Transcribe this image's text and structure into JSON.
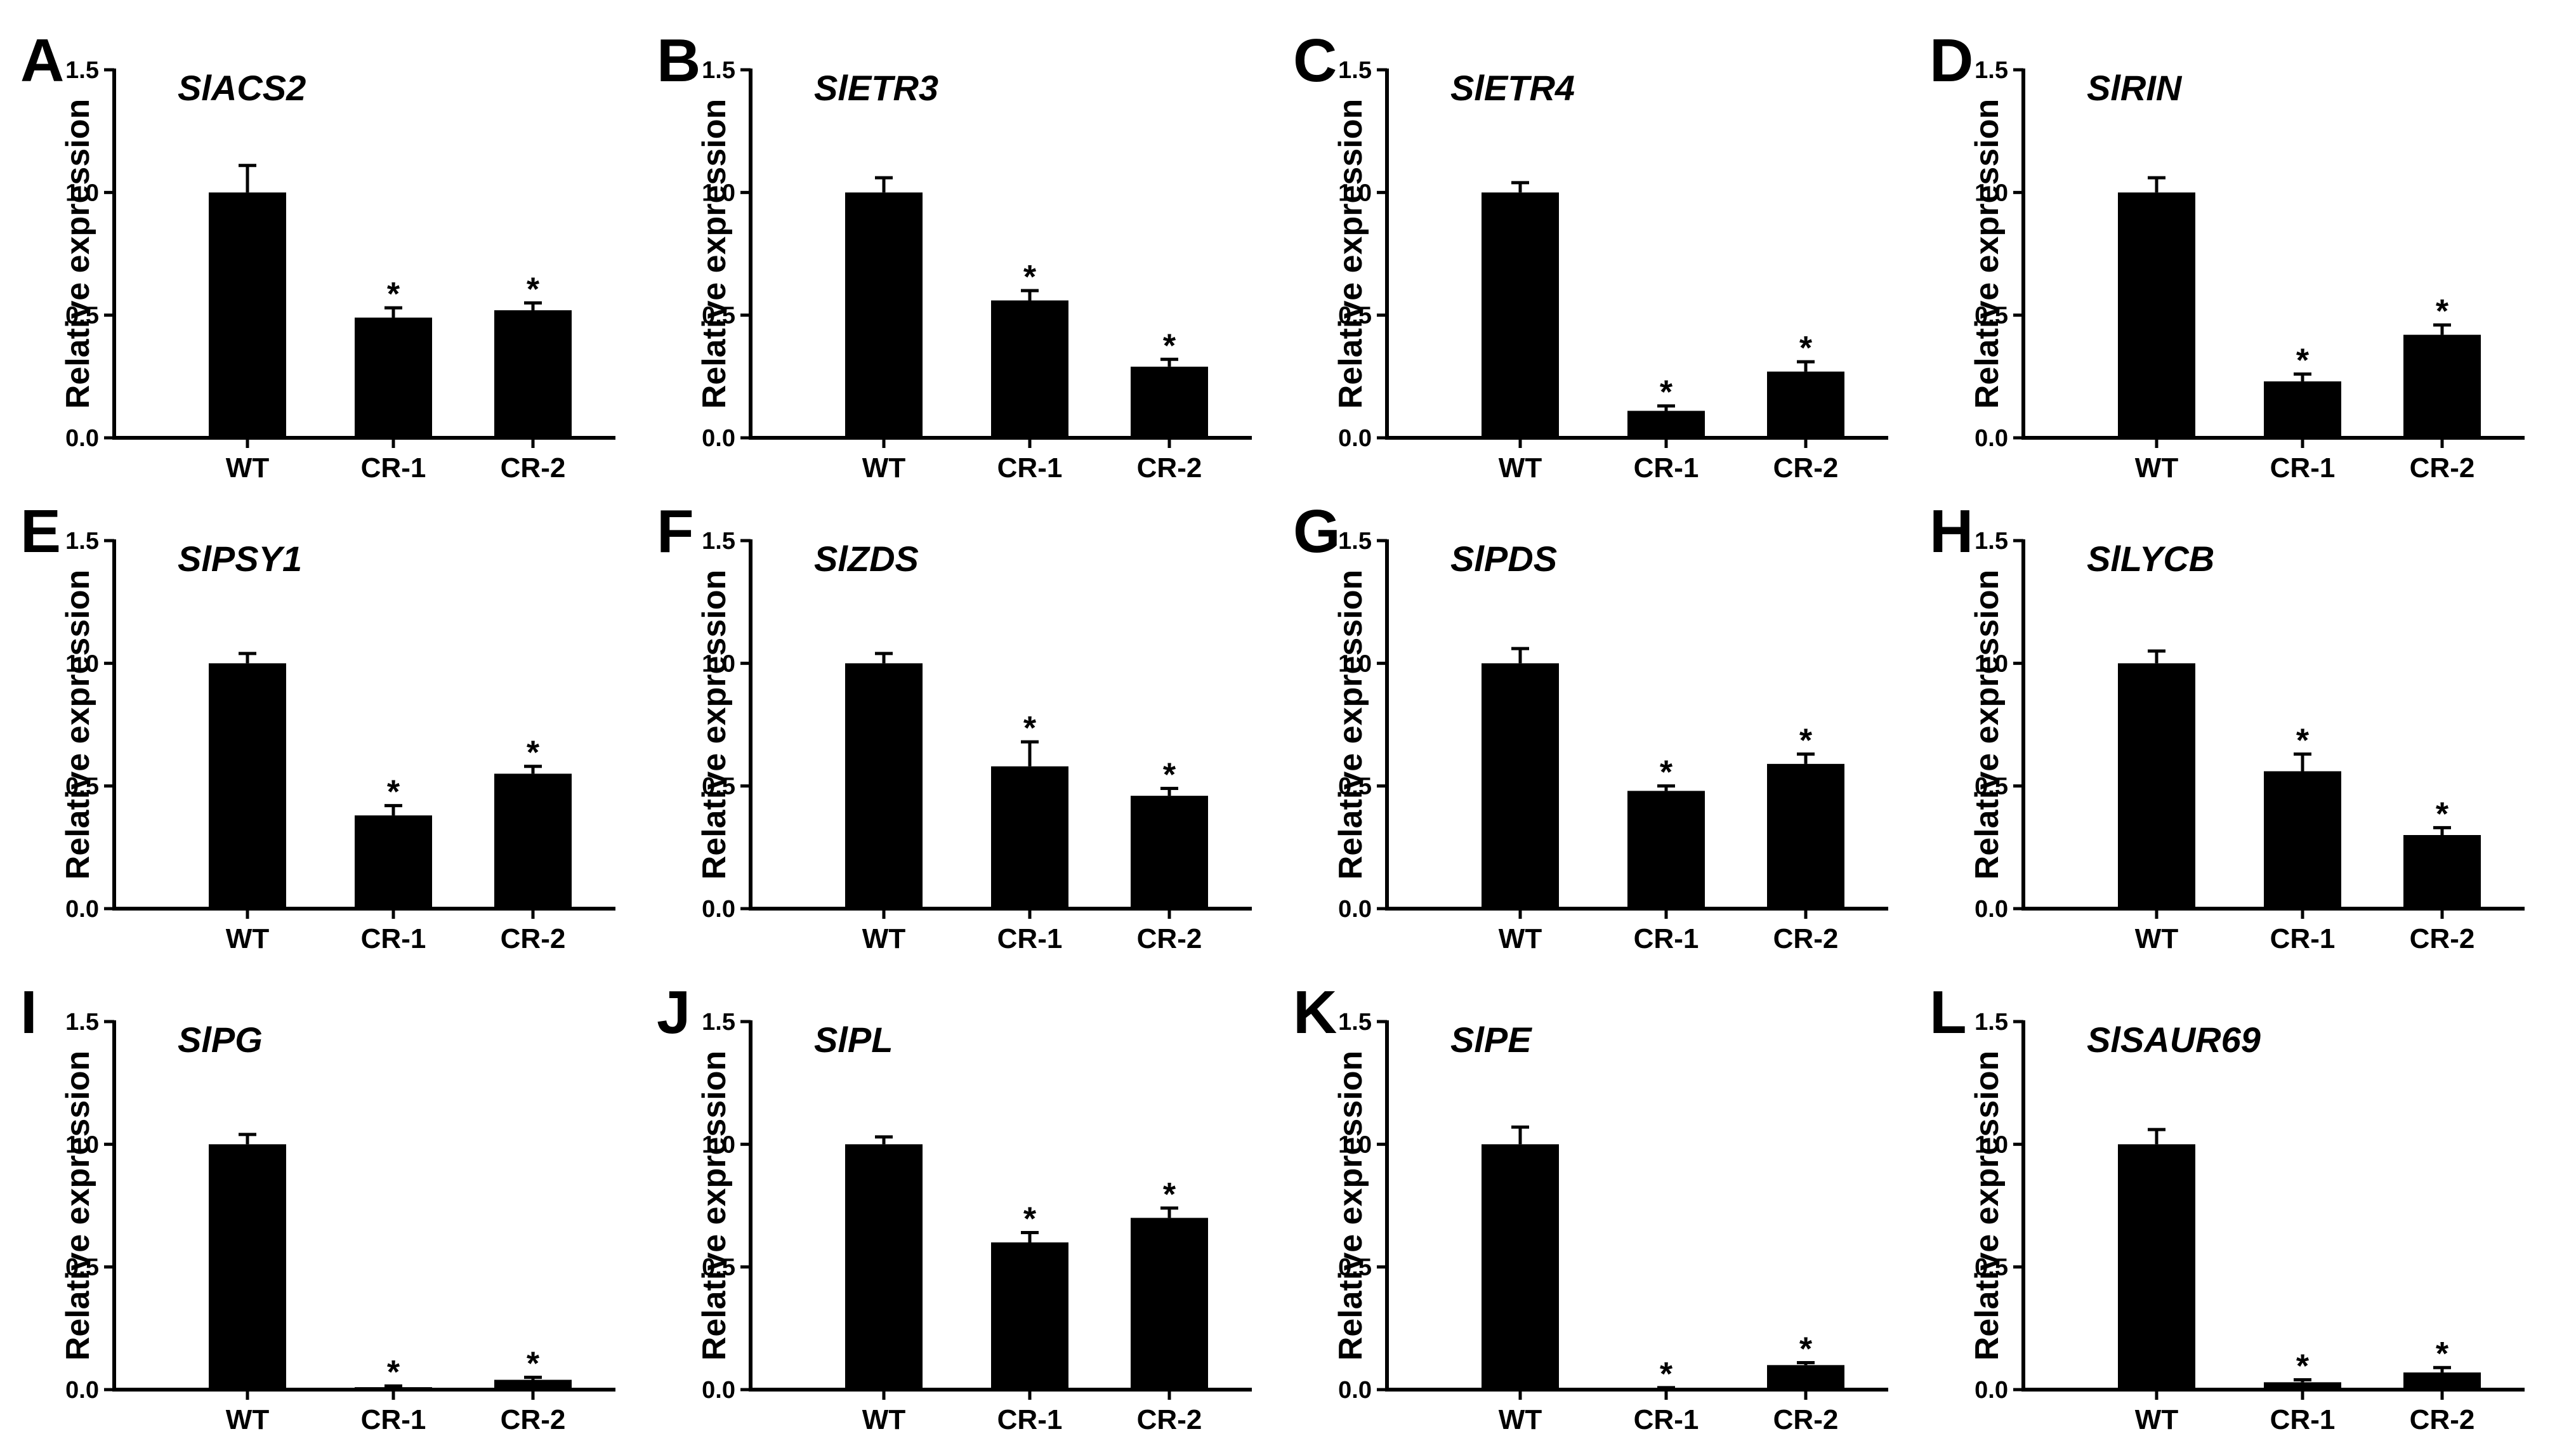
{
  "chart_data": [
    {
      "panel": "A",
      "title": "SlACS2",
      "type": "bar",
      "ylabel": "Relative expression",
      "ylim": [
        0,
        1.5
      ],
      "yticks": [
        "0.0",
        "0.5",
        "1.0",
        "1.5"
      ],
      "categories": [
        "WT",
        "CR-1",
        "CR-2"
      ],
      "values": [
        1.0,
        0.49,
        0.52
      ],
      "errors": [
        0.11,
        0.04,
        0.03
      ],
      "significance": [
        "",
        "*",
        "*"
      ]
    },
    {
      "panel": "B",
      "title": "SlETR3",
      "type": "bar",
      "ylabel": "Relative expression",
      "ylim": [
        0,
        1.5
      ],
      "yticks": [
        "0.0",
        "0.5",
        "1.0",
        "1.5"
      ],
      "categories": [
        "WT",
        "CR-1",
        "CR-2"
      ],
      "values": [
        1.0,
        0.56,
        0.29
      ],
      "errors": [
        0.06,
        0.04,
        0.03
      ],
      "significance": [
        "",
        "*",
        "*"
      ]
    },
    {
      "panel": "C",
      "title": "SlETR4",
      "type": "bar",
      "ylabel": "Relative expression",
      "ylim": [
        0,
        1.5
      ],
      "yticks": [
        "0.0",
        "0.5",
        "1.0",
        "1.5"
      ],
      "categories": [
        "WT",
        "CR-1",
        "CR-2"
      ],
      "values": [
        1.0,
        0.11,
        0.27
      ],
      "errors": [
        0.04,
        0.02,
        0.04
      ],
      "significance": [
        "",
        "*",
        "*"
      ]
    },
    {
      "panel": "D",
      "title": "SlRIN",
      "type": "bar",
      "ylabel": "Relative expression",
      "ylim": [
        0,
        1.5
      ],
      "yticks": [
        "0.0",
        "0.5",
        "1.0",
        "1.5"
      ],
      "categories": [
        "WT",
        "CR-1",
        "CR-2"
      ],
      "values": [
        1.0,
        0.23,
        0.42
      ],
      "errors": [
        0.06,
        0.03,
        0.04
      ],
      "significance": [
        "",
        "*",
        "*"
      ]
    },
    {
      "panel": "E",
      "title": "SlPSY1",
      "type": "bar",
      "ylabel": "Relative expression",
      "ylim": [
        0,
        1.5
      ],
      "yticks": [
        "0.0",
        "0.5",
        "1.0",
        "1.5"
      ],
      "categories": [
        "WT",
        "CR-1",
        "CR-2"
      ],
      "values": [
        1.0,
        0.38,
        0.55
      ],
      "errors": [
        0.04,
        0.04,
        0.03
      ],
      "significance": [
        "",
        "*",
        "*"
      ]
    },
    {
      "panel": "F",
      "title": "SlZDS",
      "type": "bar",
      "ylabel": "Relative expression",
      "ylim": [
        0,
        1.5
      ],
      "yticks": [
        "0.0",
        "0.5",
        "1.0",
        "1.5"
      ],
      "categories": [
        "WT",
        "CR-1",
        "CR-2"
      ],
      "values": [
        1.0,
        0.58,
        0.46
      ],
      "errors": [
        0.04,
        0.1,
        0.03
      ],
      "significance": [
        "",
        "*",
        "*"
      ]
    },
    {
      "panel": "G",
      "title": "SlPDS",
      "type": "bar",
      "ylabel": "Relative expression",
      "ylim": [
        0,
        1.5
      ],
      "yticks": [
        "0.0",
        "0.5",
        "1.0",
        "1.5"
      ],
      "categories": [
        "WT",
        "CR-1",
        "CR-2"
      ],
      "values": [
        1.0,
        0.48,
        0.59
      ],
      "errors": [
        0.06,
        0.02,
        0.04
      ],
      "significance": [
        "",
        "*",
        "*"
      ]
    },
    {
      "panel": "H",
      "title": "SlLYCB",
      "type": "bar",
      "ylabel": "Relative expression",
      "ylim": [
        0,
        1.5
      ],
      "yticks": [
        "0.0",
        "0.5",
        "1.0",
        "1.5"
      ],
      "categories": [
        "WT",
        "CR-1",
        "CR-2"
      ],
      "values": [
        1.0,
        0.56,
        0.3
      ],
      "errors": [
        0.05,
        0.07,
        0.03
      ],
      "significance": [
        "",
        "*",
        "*"
      ]
    },
    {
      "panel": "I",
      "title": "SlPG",
      "type": "bar",
      "ylabel": "Relative expression",
      "ylim": [
        0,
        1.5
      ],
      "yticks": [
        "0.0",
        "0.5",
        "1.0",
        "1.5"
      ],
      "categories": [
        "WT",
        "CR-1",
        "CR-2"
      ],
      "values": [
        1.0,
        0.01,
        0.04
      ],
      "errors": [
        0.04,
        0.005,
        0.01
      ],
      "significance": [
        "",
        "*",
        "*"
      ]
    },
    {
      "panel": "J",
      "title": "SlPL",
      "type": "bar",
      "ylabel": "Relative expression",
      "ylim": [
        0,
        1.5
      ],
      "yticks": [
        "0.0",
        "0.5",
        "1.0",
        "1.5"
      ],
      "categories": [
        "WT",
        "CR-1",
        "CR-2"
      ],
      "values": [
        1.0,
        0.6,
        0.7
      ],
      "errors": [
        0.03,
        0.04,
        0.04
      ],
      "significance": [
        "",
        "*",
        "*"
      ]
    },
    {
      "panel": "K",
      "title": "SlPE",
      "type": "bar",
      "ylabel": "Relative expression",
      "ylim": [
        0,
        1.5
      ],
      "yticks": [
        "0.0",
        "0.5",
        "1.0",
        "1.5"
      ],
      "categories": [
        "WT",
        "CR-1",
        "CR-2"
      ],
      "values": [
        1.0,
        0.005,
        0.1
      ],
      "errors": [
        0.07,
        0.003,
        0.01
      ],
      "significance": [
        "",
        "*",
        "*"
      ]
    },
    {
      "panel": "L",
      "title": "SlSAUR69",
      "type": "bar",
      "ylabel": "Relative expression",
      "ylim": [
        0,
        1.5
      ],
      "yticks": [
        "0.0",
        "0.5",
        "1.0",
        "1.5"
      ],
      "categories": [
        "WT",
        "CR-1",
        "CR-2"
      ],
      "values": [
        1.0,
        0.03,
        0.07
      ],
      "errors": [
        0.06,
        0.01,
        0.02
      ],
      "significance": [
        "",
        "*",
        "*"
      ]
    }
  ],
  "style": {
    "bar_color": "#000000",
    "axis_color": "#000000",
    "background": "#ffffff"
  }
}
